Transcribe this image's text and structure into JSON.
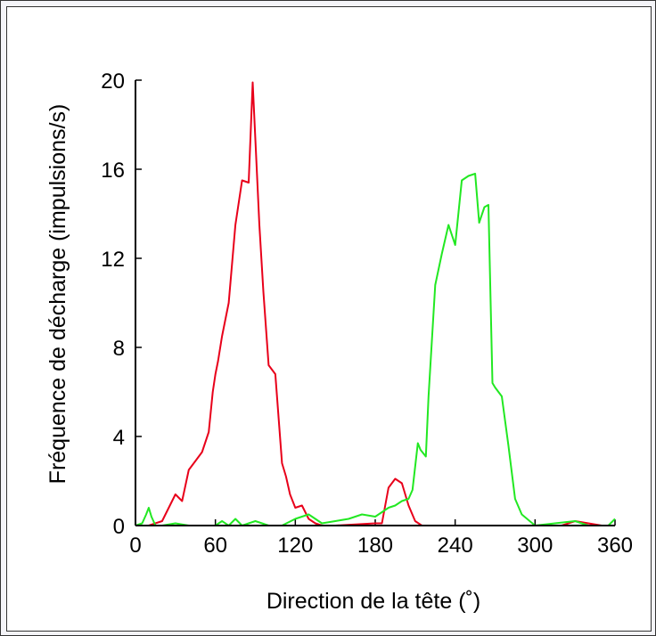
{
  "chart_data": {
    "type": "line",
    "xlabel": "Direction de la tête (˚)",
    "ylabel": "Fréquence de décharge (impulsions/s)",
    "xlim": [
      0,
      360
    ],
    "ylim": [
      0,
      20
    ],
    "xticks": [
      0,
      60,
      120,
      180,
      240,
      300,
      360
    ],
    "yticks": [
      0,
      4,
      8,
      12,
      16,
      20
    ],
    "grid": false,
    "series": [
      {
        "color": "#e8001a",
        "x": [
          0,
          10,
          20,
          30,
          35,
          40,
          45,
          50,
          55,
          58,
          60,
          62,
          65,
          70,
          75,
          80,
          85,
          88,
          93,
          96,
          100,
          105,
          110,
          113,
          116,
          120,
          125,
          130,
          135,
          140,
          145,
          150,
          180,
          185,
          190,
          195,
          200,
          205,
          210,
          215,
          225,
          240,
          300,
          320,
          330,
          340,
          350,
          360
        ],
        "values": [
          0,
          0,
          0.2,
          1.4,
          1.1,
          2.5,
          2.9,
          3.3,
          4.2,
          6.0,
          6.8,
          7.4,
          8.5,
          10.0,
          13.5,
          15.5,
          15.4,
          19.9,
          13.5,
          10.5,
          7.2,
          6.8,
          2.8,
          2.2,
          1.4,
          0.8,
          0.9,
          0.3,
          0.1,
          0,
          0,
          0,
          0.1,
          0.1,
          1.7,
          2.1,
          1.9,
          0.9,
          0.2,
          0,
          0,
          0,
          0,
          0,
          0.2,
          0.1,
          0,
          0
        ]
      },
      {
        "color": "#22e822",
        "x": [
          0,
          5,
          8,
          10,
          12,
          15,
          20,
          30,
          40,
          50,
          60,
          65,
          70,
          75,
          80,
          90,
          100,
          110,
          120,
          125,
          130,
          135,
          140,
          150,
          160,
          170,
          180,
          185,
          190,
          195,
          200,
          205,
          208,
          212,
          214,
          218,
          220,
          225,
          230,
          235,
          240,
          245,
          250,
          255,
          258,
          262,
          265,
          268,
          270,
          275,
          280,
          285,
          290,
          300,
          330,
          340,
          355,
          360
        ],
        "values": [
          0,
          0.1,
          0.5,
          0.8,
          0.4,
          0,
          0,
          0.1,
          0,
          0,
          0,
          0.2,
          0,
          0.3,
          0,
          0.2,
          0,
          0,
          0.3,
          0.4,
          0.5,
          0.3,
          0.1,
          0.2,
          0.3,
          0.5,
          0.4,
          0.6,
          0.8,
          0.9,
          1.1,
          1.2,
          1.6,
          3.7,
          3.4,
          3.1,
          5.8,
          10.8,
          12.2,
          13.5,
          12.6,
          15.5,
          15.7,
          15.8,
          13.6,
          14.3,
          14.4,
          6.4,
          6.2,
          5.8,
          3.6,
          1.2,
          0.5,
          0,
          0.2,
          0,
          0,
          0.3
        ]
      }
    ]
  }
}
